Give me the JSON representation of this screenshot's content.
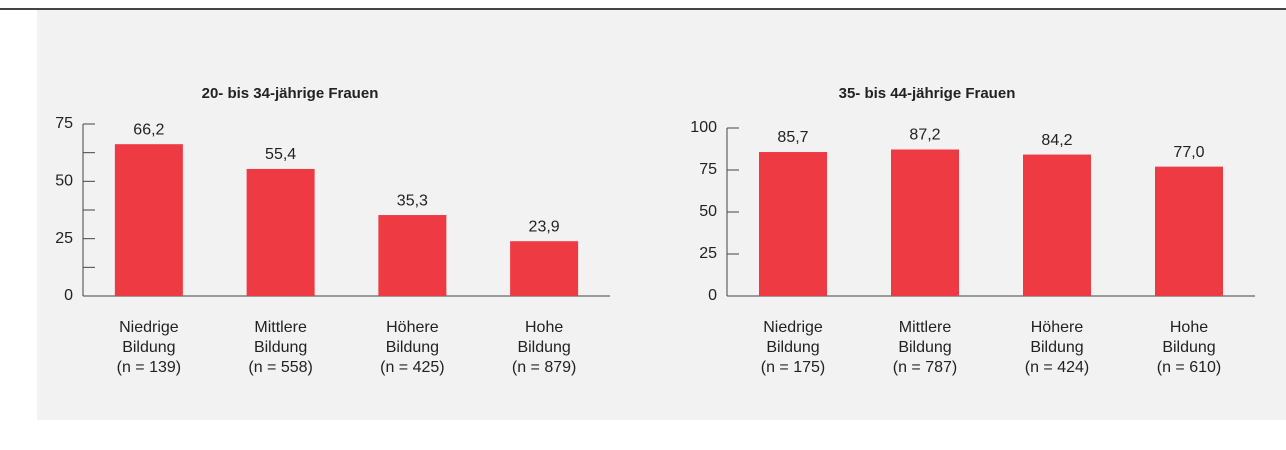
{
  "chart_data": [
    {
      "type": "bar",
      "title": "20- bis 34-jährige Frauen",
      "categories": [
        [
          "Niedrige",
          "Bildung",
          "(n = 139)"
        ],
        [
          "Mittlere",
          "Bildung",
          "(n = 558)"
        ],
        [
          "Höhere",
          "Bildung",
          "(n = 425)"
        ],
        [
          "Hohe",
          "Bildung",
          "(n = 879)"
        ]
      ],
      "values": [
        66.2,
        55.4,
        35.3,
        23.9
      ],
      "value_labels": [
        "66,2",
        "55,4",
        "35,3",
        "23,9"
      ],
      "color": "#ee3a43",
      "ylim": [
        0,
        75
      ],
      "yticks": [
        0,
        25,
        50,
        75
      ],
      "minor_yticks": [
        12.5,
        37.5,
        62.5
      ]
    },
    {
      "type": "bar",
      "title": "35- bis 44-jährige Frauen",
      "categories": [
        [
          "Niedrige",
          "Bildung",
          "(n = 175)"
        ],
        [
          "Mittlere",
          "Bildung",
          "(n = 787)"
        ],
        [
          "Höhere",
          "Bildung",
          "(n = 424)"
        ],
        [
          "Hohe",
          "Bildung",
          "(n = 610)"
        ]
      ],
      "values": [
        85.7,
        87.2,
        84.2,
        77.0
      ],
      "value_labels": [
        "85,7",
        "87,2",
        "84,2",
        "77,0"
      ],
      "color": "#ee3a43",
      "ylim": [
        0,
        100
      ],
      "yticks": [
        0,
        25,
        50,
        75,
        100
      ]
    }
  ]
}
